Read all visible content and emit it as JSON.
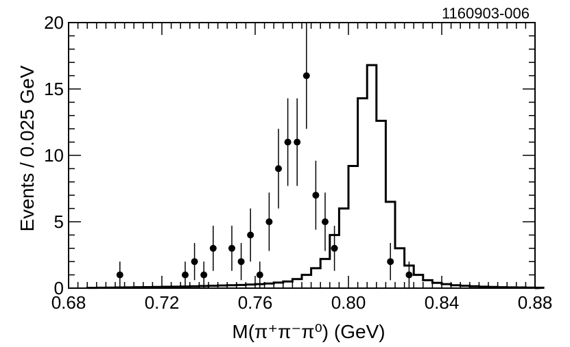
{
  "figure_id": "1160903-006",
  "chart_data": {
    "type": "scatter",
    "xlabel": "M(π⁺π⁻π⁰) (GeV)",
    "ylabel": "Events / 0.025 GeV",
    "xlim": [
      0.68,
      0.88
    ],
    "ylim": [
      0,
      20
    ],
    "x_ticks": [
      "0.68",
      "0.72",
      "0.76",
      "0.80",
      "0.84",
      "0.88"
    ],
    "x_tick_values": [
      0.68,
      0.72,
      0.76,
      0.8,
      0.84,
      0.88
    ],
    "y_ticks": [
      "0",
      "5",
      "10",
      "15",
      "20"
    ],
    "y_tick_values": [
      0,
      5,
      10,
      15,
      20
    ],
    "grid": false,
    "series": [
      {
        "kind": "points-with-errors",
        "x": [
          0.702,
          0.73,
          0.734,
          0.738,
          0.742,
          0.75,
          0.754,
          0.758,
          0.762,
          0.766,
          0.77,
          0.774,
          0.778,
          0.782,
          0.786,
          0.79,
          0.794,
          0.818,
          0.826
        ],
        "y": [
          1,
          1,
          2,
          1,
          3,
          3,
          2,
          4,
          1,
          5,
          9,
          11,
          11,
          16,
          7,
          5,
          3,
          2,
          1
        ],
        "err": [
          1.0,
          1.0,
          1.4,
          1.0,
          1.7,
          1.7,
          1.4,
          2.0,
          1.0,
          2.2,
          3.0,
          3.3,
          3.3,
          4.0,
          2.6,
          2.2,
          1.7,
          1.4,
          1.0
        ]
      },
      {
        "kind": "histogram",
        "bin_width": 0.004,
        "bin_start": 0.688,
        "values": [
          0.02,
          0.03,
          0.04,
          0.05,
          0.06,
          0.07,
          0.08,
          0.09,
          0.1,
          0.11,
          0.12,
          0.14,
          0.16,
          0.18,
          0.2,
          0.22,
          0.24,
          0.27,
          0.3,
          0.35,
          0.42,
          0.5,
          0.68,
          1.0,
          1.5,
          2.2,
          4.0,
          6.0,
          9.2,
          14.3,
          16.8,
          12.6,
          6.5,
          3.0,
          1.7,
          1.0,
          0.6,
          0.4,
          0.3,
          0.22,
          0.18,
          0.14,
          0.11,
          0.09,
          0.07,
          0.06,
          0.05,
          0.04,
          0.03
        ]
      }
    ]
  }
}
